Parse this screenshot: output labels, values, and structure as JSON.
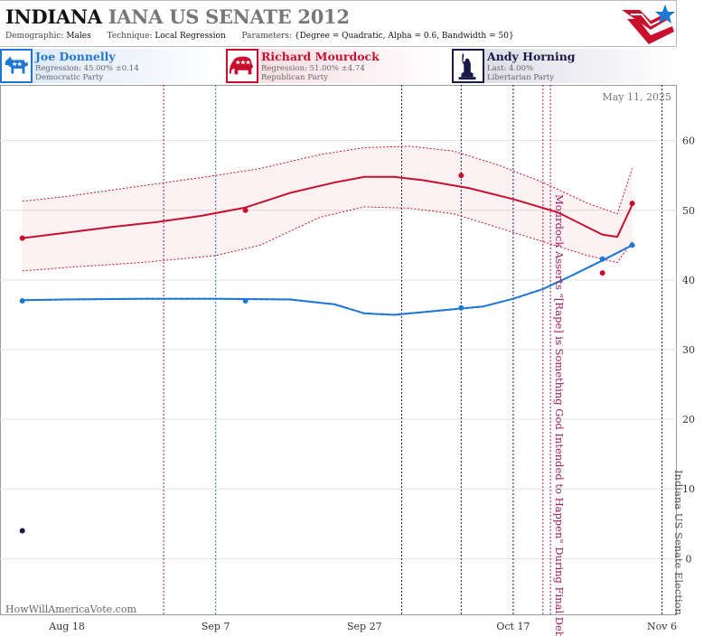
{
  "header": {
    "title_state": "INDIANA",
    "title_abbr": "IANA",
    "title_race": "US SENATE 2012",
    "demographic_label": "Demographic:",
    "demographic_value": "Males",
    "technique_label": "Technique:",
    "technique_value": "Local Regression",
    "parameters_label": "Parameters:",
    "parameters_value": "{Degree = Quadratic, Alpha = 0.6, Bandwidth = 50}"
  },
  "candidates": [
    {
      "name": "Joe Donnelly",
      "stat": "Regression: 45.00% ±0.14",
      "party": "Democratic Party",
      "icon": "donkey-icon",
      "color": "#1f77d4"
    },
    {
      "name": "Richard Mourdock",
      "stat": "Regression: 51.00% ±4.74",
      "party": "Republican Party",
      "icon": "elephant-icon",
      "color": "#c8102e"
    },
    {
      "name": "Andy Horning",
      "stat": "Last: 4.00%",
      "party": "Libertarian Party",
      "icon": "liberty-statue-icon",
      "color": "#1a1a4a"
    }
  ],
  "chart_data": {
    "type": "line",
    "date_label": "May 11, 2025",
    "credit": "HowWillAmericaVote.com",
    "x_ticks": [
      {
        "label": "Aug 18",
        "day": 0
      },
      {
        "label": "Sep 7",
        "day": 20
      },
      {
        "label": "Sep 27",
        "day": 40
      },
      {
        "label": "Oct 17",
        "day": 60
      },
      {
        "label": "Nov 6",
        "day": 80
      }
    ],
    "xlim": [
      -9,
      82
    ],
    "ylim": [
      -8,
      68
    ],
    "y_ticks": [
      0,
      10,
      20,
      30,
      40,
      50,
      60
    ],
    "grid": true,
    "series": [
      {
        "name": "Joe Donnelly",
        "color": "#1f77d4",
        "line": [
          [
            -6,
            37.1
          ],
          [
            0,
            37.2
          ],
          [
            10,
            37.3
          ],
          [
            20,
            37.3
          ],
          [
            30,
            37.2
          ],
          [
            36,
            36.5
          ],
          [
            40,
            35.2
          ],
          [
            44,
            35.0
          ],
          [
            50,
            35.6
          ],
          [
            56,
            36.2
          ],
          [
            60,
            37.3
          ],
          [
            64,
            38.7
          ],
          [
            68,
            40.7
          ],
          [
            72,
            42.8
          ],
          [
            76,
            45.0
          ]
        ],
        "points": [
          [
            -6,
            37.0
          ],
          [
            24,
            37.0
          ],
          [
            53,
            36.0
          ],
          [
            72,
            43.0
          ],
          [
            76,
            45.0
          ]
        ]
      },
      {
        "name": "Richard Mourdock",
        "color": "#c8102e",
        "line": [
          [
            -6,
            46.0
          ],
          [
            0,
            46.8
          ],
          [
            6,
            47.6
          ],
          [
            12,
            48.3
          ],
          [
            18,
            49.2
          ],
          [
            24,
            50.4
          ],
          [
            30,
            52.5
          ],
          [
            36,
            54.0
          ],
          [
            40,
            54.8
          ],
          [
            44,
            54.8
          ],
          [
            48,
            54.3
          ],
          [
            54,
            53.2
          ],
          [
            60,
            51.6
          ],
          [
            66,
            49.7
          ],
          [
            72,
            46.5
          ],
          [
            74,
            46.2
          ],
          [
            76,
            50.8
          ]
        ],
        "upper": [
          [
            -6,
            51.3
          ],
          [
            0,
            52.0
          ],
          [
            10,
            53.5
          ],
          [
            20,
            55.0
          ],
          [
            26,
            56.0
          ],
          [
            34,
            58.0
          ],
          [
            40,
            59.0
          ],
          [
            46,
            59.2
          ],
          [
            52,
            58.5
          ],
          [
            58,
            56.5
          ],
          [
            64,
            54.0
          ],
          [
            70,
            51.0
          ],
          [
            74,
            49.5
          ],
          [
            76,
            56.0
          ]
        ],
        "lower": [
          [
            -6,
            41.3
          ],
          [
            0,
            41.8
          ],
          [
            10,
            42.5
          ],
          [
            20,
            43.5
          ],
          [
            26,
            45.0
          ],
          [
            34,
            49.0
          ],
          [
            40,
            50.5
          ],
          [
            46,
            50.3
          ],
          [
            52,
            49.5
          ],
          [
            58,
            47.5
          ],
          [
            64,
            45.5
          ],
          [
            70,
            43.5
          ],
          [
            74,
            42.5
          ],
          [
            76,
            45.5
          ]
        ],
        "points": [
          [
            -6,
            46.0
          ],
          [
            24,
            50.0
          ],
          [
            53,
            55.0
          ],
          [
            72,
            41.0
          ],
          [
            76,
            51.0
          ]
        ]
      },
      {
        "name": "Andy Horning",
        "color": "#1a1a4a",
        "points": [
          [
            -6,
            4.0
          ]
        ]
      }
    ],
    "event_lines": [
      {
        "day": 13,
        "color": "#a0185a"
      },
      {
        "day": 20,
        "color": "#1f77d4"
      },
      {
        "day": 45,
        "color": "#1a1a4a"
      },
      {
        "day": 53,
        "color": "#1a1a4a"
      },
      {
        "day": 60,
        "color": "#1a1a4a"
      },
      {
        "day": 64,
        "color": "#a0185a"
      },
      {
        "day": 65,
        "color": "#a0185a"
      },
      {
        "day": 80,
        "color": "#1a1a4a"
      }
    ],
    "annotations": [
      {
        "text": "Mourdock Asserts \"[Rape] is Something God Intended to Happen\" During Final Debate",
        "day": 65,
        "color": "#a0185a"
      },
      {
        "text": "Indiana US Senate Election",
        "day": 81,
        "color": "#555555"
      }
    ]
  }
}
